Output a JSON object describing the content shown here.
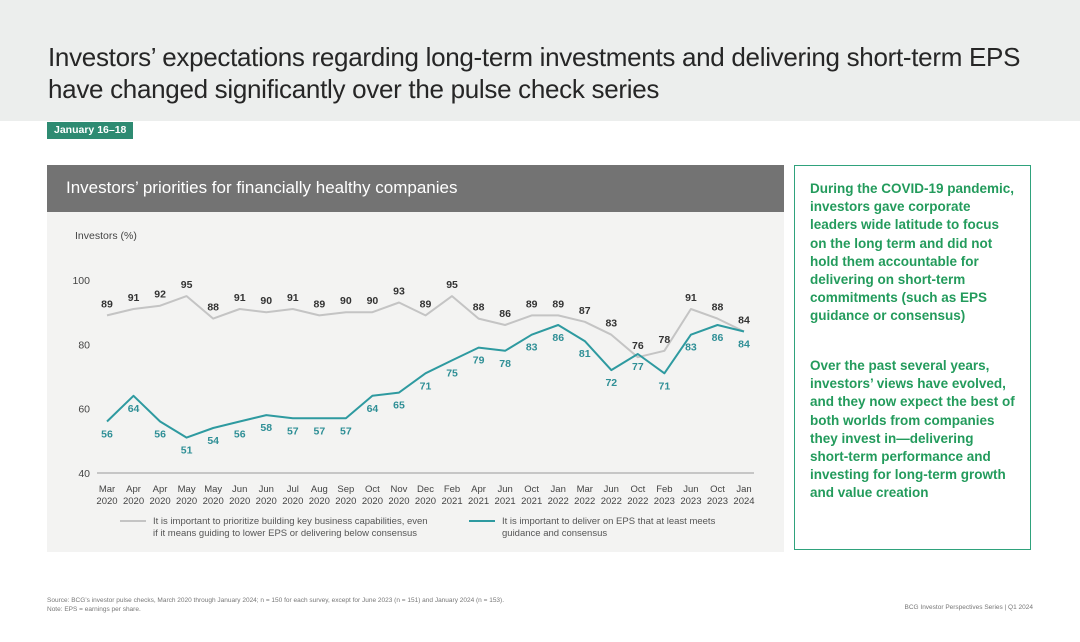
{
  "header": {
    "title": "Investors’ expectations regarding long-term investments and delivering short-term EPS have changed significantly over the pulse check series",
    "date_badge": "January 16–18"
  },
  "panel": {
    "title": "Investors’ priorities for financially healthy companies"
  },
  "chart_data": {
    "type": "line",
    "ylabel": "Investors (%)",
    "ylim": [
      40,
      100
    ],
    "yticks": [
      40,
      60,
      80,
      100
    ],
    "categories": [
      [
        "Mar",
        "2020"
      ],
      [
        "Apr",
        "2020"
      ],
      [
        "Apr",
        "2020"
      ],
      [
        "May",
        "2020"
      ],
      [
        "May",
        "2020"
      ],
      [
        "Jun",
        "2020"
      ],
      [
        "Jun",
        "2020"
      ],
      [
        "Jul",
        "2020"
      ],
      [
        "Aug",
        "2020"
      ],
      [
        "Sep",
        "2020"
      ],
      [
        "Oct",
        "2020"
      ],
      [
        "Nov",
        "2020"
      ],
      [
        "Dec",
        "2020"
      ],
      [
        "Feb",
        "2021"
      ],
      [
        "Apr",
        "2021"
      ],
      [
        "Jun",
        "2021"
      ],
      [
        "Oct",
        "2021"
      ],
      [
        "Jan",
        "2022"
      ],
      [
        "Mar",
        "2022"
      ],
      [
        "Jun",
        "2022"
      ],
      [
        "Oct",
        "2022"
      ],
      [
        "Feb",
        "2023"
      ],
      [
        "Jun",
        "2023"
      ],
      [
        "Oct",
        "2023"
      ],
      [
        "Jan",
        "2024"
      ]
    ],
    "series": [
      {
        "name": "It is important to prioritize building key business capabilities, even if it means guiding to lower EPS or delivering below consensus",
        "color": "#c4c4c4",
        "label_color": "#333333",
        "values": [
          89,
          91,
          92,
          95,
          88,
          91,
          90,
          91,
          89,
          90,
          90,
          93,
          89,
          95,
          88,
          86,
          89,
          89,
          87,
          83,
          76,
          78,
          91,
          88,
          84
        ]
      },
      {
        "name": "It is important to deliver on EPS that at least meets guidance and consensus",
        "color": "#2e9aa0",
        "label_color": "#2f8f96",
        "values": [
          56,
          64,
          56,
          51,
          54,
          56,
          58,
          57,
          57,
          57,
          64,
          65,
          71,
          75,
          79,
          78,
          83,
          86,
          81,
          72,
          77,
          71,
          83,
          86,
          84
        ]
      }
    ],
    "legend": "bottom"
  },
  "callout": {
    "p1": "During the COVID-19 pandemic, investors gave corporate leaders wide latitude to focus on the long term and did not hold them accountable for delivering on short-term commitments (such as EPS guidance or consensus)",
    "p2": "Over the past several years, investors’ views have evolved, and they now expect the best of both worlds from companies they invest in—delivering short-term performance and investing for long-term growth and value creation"
  },
  "footer": {
    "source": "Source: BCG’s investor pulse checks, March 2020 through January 2024; n = 150 for each survey, except for June 2023 (n = 151) and January 2024 (n = 153).",
    "note": "Note: EPS = earnings per share.",
    "series": "BCG Investor Perspectives Series | Q1 2024"
  }
}
